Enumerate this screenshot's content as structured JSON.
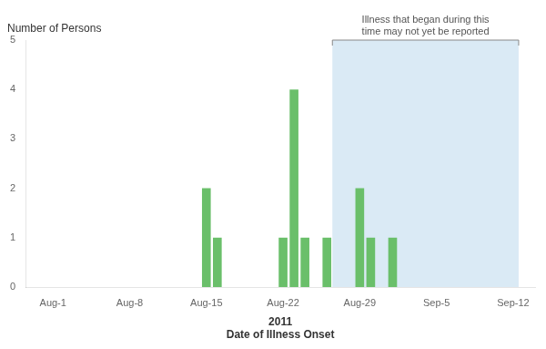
{
  "chart_data": {
    "type": "bar",
    "ylabel": "Number of Persons",
    "xlabel": "2011\nDate of Illness Onset",
    "x": [
      15,
      16,
      22,
      23,
      24,
      26,
      29,
      30,
      32
    ],
    "values": [
      2,
      1,
      1,
      4,
      1,
      1,
      2,
      1,
      1
    ],
    "color": "#6abf6a",
    "xlim": [
      -1.5,
      45
    ],
    "xticks": [
      {
        "value": 1,
        "label": "Aug-1"
      },
      {
        "value": 8,
        "label": "Aug-8"
      },
      {
        "value": 15,
        "label": "Aug-15"
      },
      {
        "value": 22,
        "label": "Aug-22"
      },
      {
        "value": 29,
        "label": "Aug-29"
      },
      {
        "value": 36,
        "label": "Sep-5"
      },
      {
        "value": 43,
        "label": "Sep-12"
      }
    ],
    "ylim": [
      0,
      5
    ],
    "yticks": [
      0,
      1,
      2,
      3,
      4,
      5
    ],
    "grid": false,
    "annotations": [
      {
        "text": "Illness that began during this\ntime may not yet be reported",
        "x_start": 26.5,
        "x_end": 43.5,
        "color": "#daeaf5"
      }
    ]
  }
}
